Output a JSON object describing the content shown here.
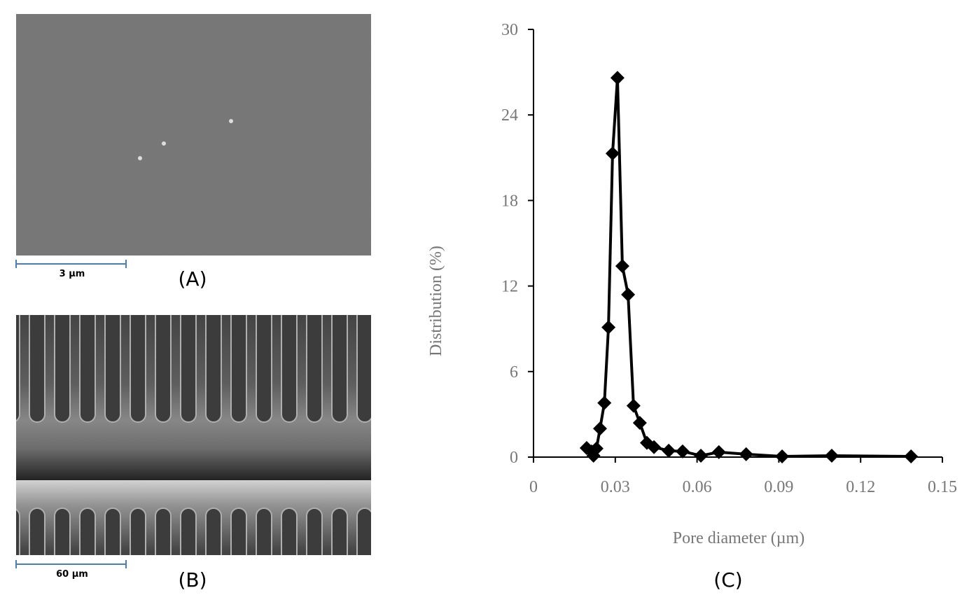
{
  "panels": {
    "a_scale": "3 µm",
    "a_label": "(A)",
    "b_scale": "60 µm",
    "b_label": "(B)",
    "c_label": "(C)"
  },
  "chart_data": {
    "type": "line",
    "xlabel": "Pore diameter (µm)",
    "ylabel": "Distribution (%)",
    "x": [
      0.0195,
      0.0213,
      0.022,
      0.0231,
      0.0244,
      0.026,
      0.0275,
      0.029,
      0.0308,
      0.0326,
      0.0347,
      0.0367,
      0.039,
      0.0416,
      0.0442,
      0.0496,
      0.0547,
      0.0614,
      0.068,
      0.078,
      0.0912,
      0.1094,
      0.1385
    ],
    "series": [
      {
        "color": "#000000",
        "marker": "diamond",
        "values": [
          0.64,
          0.4,
          0.1,
          0.6,
          2.0,
          3.8,
          9.1,
          21.3,
          26.6,
          13.4,
          11.4,
          3.6,
          2.4,
          1.0,
          0.7,
          0.45,
          0.4,
          0.1,
          0.35,
          0.2,
          0.05,
          0.1,
          0.05
        ]
      }
    ],
    "xlim": [
      0,
      0.15
    ],
    "xticks": [
      0,
      0.03,
      0.06,
      0.09,
      0.12,
      0.15
    ],
    "ylim": [
      0,
      30
    ],
    "yticks": [
      0,
      6,
      12,
      18,
      24,
      30
    ],
    "grid": false
  }
}
